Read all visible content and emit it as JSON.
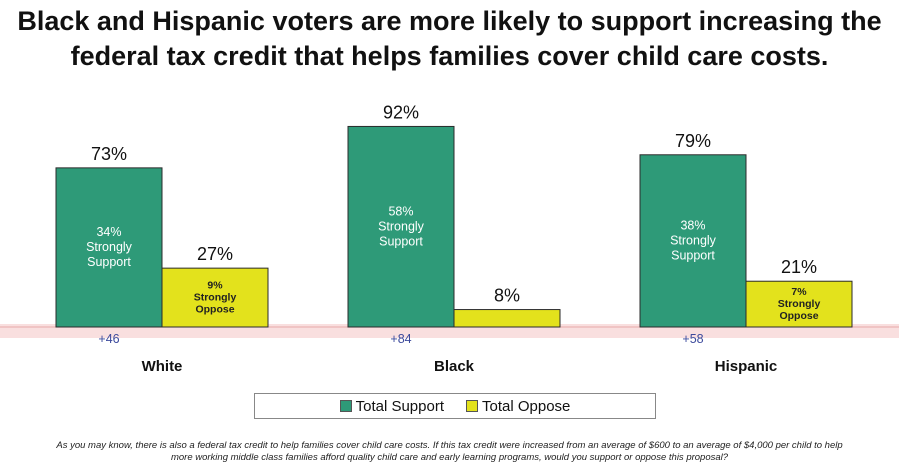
{
  "title": {
    "line1": "Black and Hispanic voters are more likely to support increasing the",
    "line2": "federal tax credit that helps families cover child care costs."
  },
  "colors": {
    "support": "#2e9a78",
    "oppose": "#e3e21c",
    "baseline_glow": "#f4c4c4",
    "margin_text": "#3c4a9c"
  },
  "chart_data": {
    "type": "bar",
    "categories": [
      "White",
      "Black",
      "Hispanic"
    ],
    "ylim": [
      0,
      100
    ],
    "series": [
      {
        "name": "Total Support",
        "values": [
          73,
          92,
          79
        ],
        "labels": [
          "73%",
          "92%",
          "79%"
        ],
        "strong_values": [
          34,
          58,
          38
        ],
        "inner_labels": [
          [
            "34%",
            "Strongly",
            "Support"
          ],
          [
            "58%",
            "Strongly",
            "Support"
          ],
          [
            "38%",
            "Strongly",
            "Support"
          ]
        ]
      },
      {
        "name": "Total Oppose",
        "values": [
          27,
          8,
          21
        ],
        "labels": [
          "27%",
          "8%",
          "21%"
        ],
        "strong_values": [
          9,
          null,
          7
        ],
        "inner_labels": [
          [
            "9%",
            "Strongly",
            "Oppose"
          ],
          [],
          [
            "7%",
            "Strongly",
            "Oppose"
          ]
        ]
      }
    ],
    "margins": [
      "+46",
      "+84",
      "+58"
    ],
    "legend": [
      "Total Support",
      "Total Oppose"
    ],
    "legend_position": "bottom-center",
    "grid": false
  },
  "footnote": {
    "line1": "As you may know, there is also a federal tax credit to help families cover child care costs. If this tax credit were increased from an average of $600 to an average of $4,000 per child to help",
    "line2": "more working middle class families afford quality child care and early learning programs, would you support or oppose this proposal?"
  }
}
